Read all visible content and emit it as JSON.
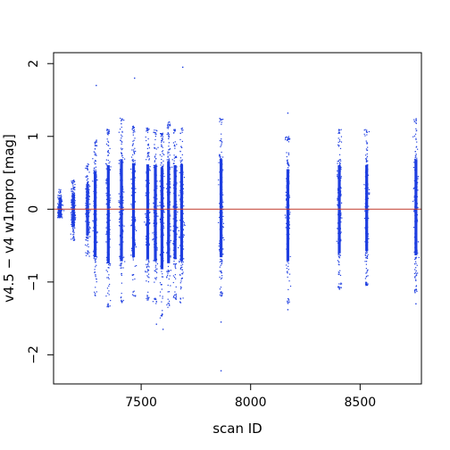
{
  "chart_data": {
    "type": "scatter",
    "title": "",
    "xlabel": "scan ID",
    "ylabel": "v4.5 − v4 w1mpro [mag]",
    "xlim": [
      7100,
      8780
    ],
    "ylim": [
      -2.4,
      2.15
    ],
    "xticks": [
      7500,
      8000,
      8500
    ],
    "yticks": [
      -2,
      -1,
      0,
      1,
      2
    ],
    "grid": false,
    "legend": "none",
    "reference_line": {
      "y": 0,
      "color": "#c0392b"
    },
    "point_color": "#1f3fe0",
    "columns": [
      {
        "x": 7130,
        "lo": -0.12,
        "hi": 0.3
      },
      {
        "x": 7190,
        "lo": -0.45,
        "hi": 0.4
      },
      {
        "x": 7255,
        "lo": -0.65,
        "hi": 0.63
      },
      {
        "x": 7290,
        "lo": -1.2,
        "hi": 0.95
      },
      {
        "x": 7350,
        "lo": -1.35,
        "hi": 1.1
      },
      {
        "x": 7410,
        "lo": -1.3,
        "hi": 1.25
      },
      {
        "x": 7465,
        "lo": -1.2,
        "hi": 1.15
      },
      {
        "x": 7530,
        "lo": -1.25,
        "hi": 1.12
      },
      {
        "x": 7565,
        "lo": -1.3,
        "hi": 1.1
      },
      {
        "x": 7595,
        "lo": -1.5,
        "hi": 1.05
      },
      {
        "x": 7625,
        "lo": -1.35,
        "hi": 1.2
      },
      {
        "x": 7655,
        "lo": -1.25,
        "hi": 1.1
      },
      {
        "x": 7685,
        "lo": -1.3,
        "hi": 1.12
      },
      {
        "x": 7865,
        "lo": -1.2,
        "hi": 1.25
      },
      {
        "x": 8170,
        "lo": -1.3,
        "hi": 1.0
      },
      {
        "x": 8405,
        "lo": -1.1,
        "hi": 1.1
      },
      {
        "x": 8530,
        "lo": -1.05,
        "hi": 1.1
      },
      {
        "x": 8755,
        "lo": -1.15,
        "hi": 1.25
      }
    ],
    "outliers": [
      {
        "x": 7295,
        "y": 1.7
      },
      {
        "x": 7470,
        "y": 1.8
      },
      {
        "x": 7690,
        "y": 1.95
      },
      {
        "x": 7865,
        "y": -2.22
      },
      {
        "x": 7865,
        "y": -1.55
      },
      {
        "x": 8170,
        "y": 1.32
      },
      {
        "x": 8170,
        "y": -1.38
      },
      {
        "x": 7600,
        "y": -1.65
      },
      {
        "x": 7570,
        "y": -1.58
      },
      {
        "x": 8755,
        "y": -1.3
      }
    ]
  }
}
